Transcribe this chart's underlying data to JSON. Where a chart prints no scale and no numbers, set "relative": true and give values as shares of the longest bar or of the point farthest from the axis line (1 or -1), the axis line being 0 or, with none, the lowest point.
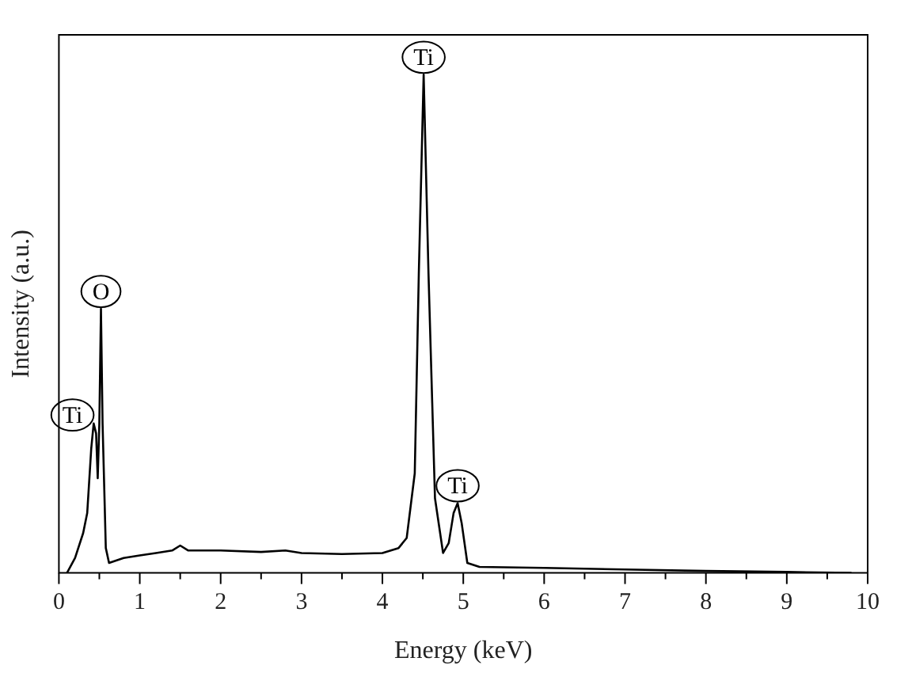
{
  "chart_data": {
    "type": "line",
    "xlabel": "Energy (keV)",
    "ylabel": "Intensity (a.u.)",
    "relative": true,
    "tick_labels": "x",
    "grid": false,
    "legend": false,
    "marker": "none",
    "line_style": "solid",
    "xlim": [
      0,
      10
    ],
    "xticks": [
      0,
      {
        "value": 0.5,
        "label": null
      },
      1,
      {
        "value": 1.5,
        "label": null
      },
      2,
      {
        "value": 2.5,
        "label": null
      },
      3,
      {
        "value": 3.5,
        "label": null
      },
      4,
      {
        "value": 4.5,
        "label": null
      },
      5,
      {
        "value": 5.5,
        "label": null
      },
      6,
      {
        "value": 6.5,
        "label": null
      },
      7,
      {
        "value": 7.5,
        "label": null
      },
      8,
      {
        "value": 8.5,
        "label": null
      },
      9,
      {
        "value": 9.5,
        "label": null
      },
      10
    ],
    "series": [
      {
        "color": "#000000",
        "x": [
          0.1,
          0.2,
          0.3,
          0.35,
          0.4,
          0.43,
          0.46,
          0.48,
          0.5,
          0.52,
          0.54,
          0.58,
          0.62,
          0.8,
          1.0,
          1.2,
          1.4,
          1.5,
          1.6,
          2.0,
          2.5,
          2.8,
          3.0,
          3.5,
          4.0,
          4.2,
          4.3,
          4.4,
          4.45,
          4.51,
          4.57,
          4.65,
          4.75,
          4.82,
          4.88,
          4.93,
          4.98,
          5.05,
          5.2,
          6.0,
          7.0,
          8.0,
          9.0,
          9.8
        ],
        "values": [
          0,
          0.03,
          0.08,
          0.12,
          0.25,
          0.3,
          0.28,
          0.19,
          0.3,
          0.53,
          0.3,
          0.05,
          0.02,
          0.03,
          0.035,
          0.04,
          0.045,
          0.055,
          0.045,
          0.045,
          0.042,
          0.045,
          0.04,
          0.038,
          0.04,
          0.05,
          0.07,
          0.2,
          0.6,
          1,
          0.6,
          0.15,
          0.04,
          0.06,
          0.12,
          0.14,
          0.1,
          0.02,
          0.012,
          0.01,
          0.007,
          0.004,
          0.002,
          0
        ]
      }
    ],
    "annotations": [
      {
        "text": "Ti",
        "x": 0.45,
        "y": 0.32
      },
      {
        "text": "O",
        "x": 0.52,
        "y": 0.53
      },
      {
        "text": "Ti",
        "x": 4.51,
        "y": 1
      },
      {
        "text": "Ti",
        "x": 4.93,
        "y": 0.14
      }
    ]
  }
}
